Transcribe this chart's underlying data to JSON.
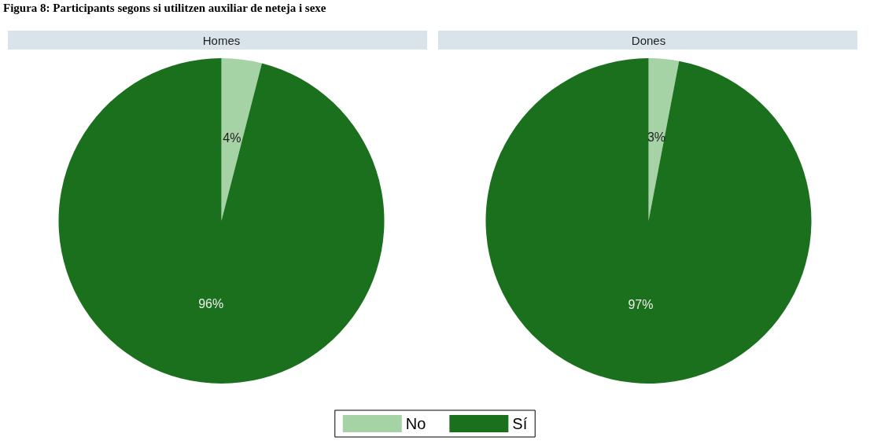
{
  "chart_data": {
    "type": "pie",
    "annotations": [
      "Figura 8: Participants segons si utilitzen auxiliar de neteja i sexe"
    ],
    "categories": [
      "No",
      "Sí"
    ],
    "colors": [
      "#a5d3a5",
      "#1a701c"
    ],
    "legend": "bottom",
    "series": [
      {
        "name": "Homes",
        "values": [
          4,
          96
        ],
        "value_labels": [
          "4%",
          "96%"
        ]
      },
      {
        "name": "Dones",
        "values": [
          3,
          97
        ],
        "value_labels": [
          "3%",
          "97%"
        ]
      }
    ]
  }
}
